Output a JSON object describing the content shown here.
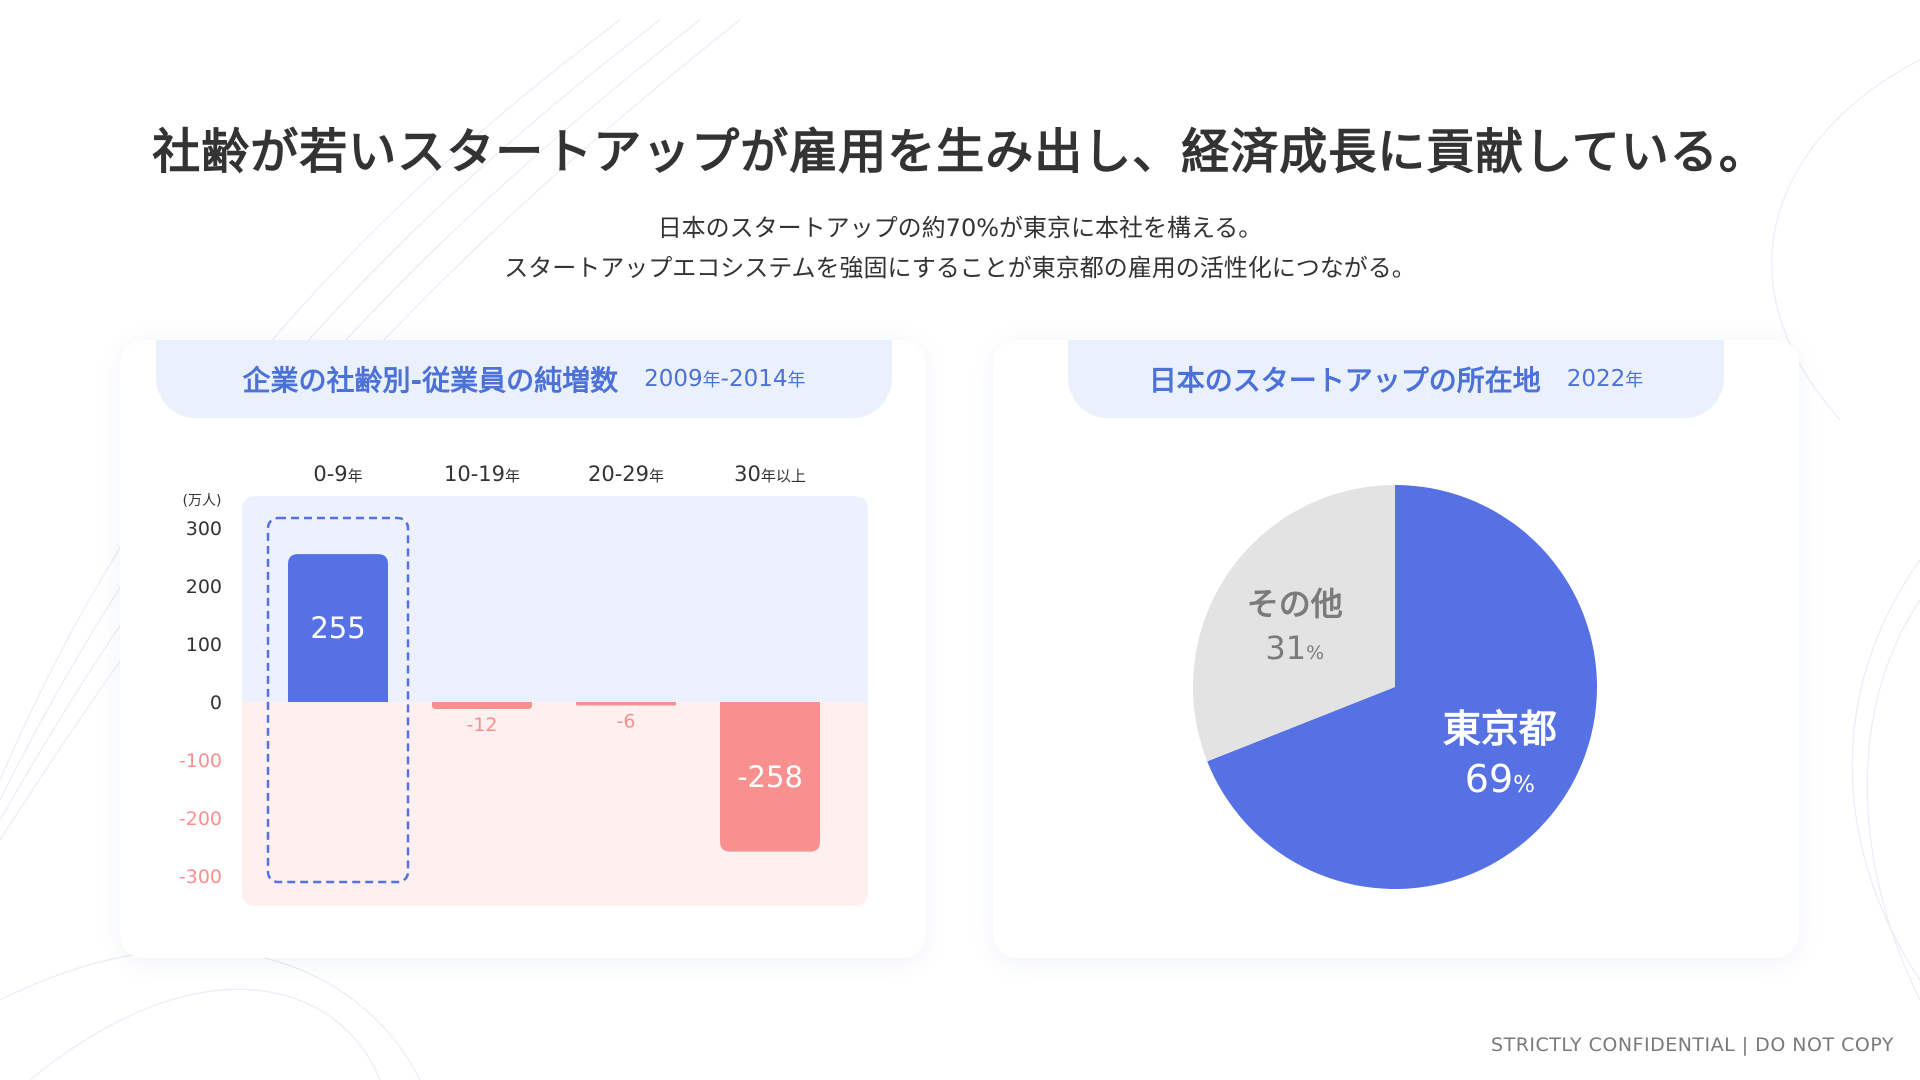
{
  "title": "社齢が若いスタートアップが雇用を生み出し、経済成長に貢献している。",
  "subtitle_lines": [
    "日本のスタートアップの約70%が東京に本社を構える。",
    "スタートアップエコシステムを強固にすることが東京都の雇用の活性化につながる。"
  ],
  "left_panel": {
    "heading": "企業の社齢別-従業員の純増数",
    "year_range": {
      "a": "2009",
      "nen": "年",
      "sep": "-",
      "b": "2014"
    }
  },
  "right_panel": {
    "heading": "日本のスタートアップの所在地",
    "year": {
      "a": "2022",
      "nen": "年"
    }
  },
  "footer": "STRICTLY CONFIDENTIAL | DO NOT COPY",
  "colors": {
    "positive": "#5671e3",
    "negative": "#f99090",
    "positive_bg": "#edf1fd",
    "negative_bg": "#fff0f0",
    "pie_tokyo": "#5671e3",
    "pie_other": "#e3e3e3",
    "highlight_border": "#5671e3"
  },
  "chart_data": [
    {
      "type": "bar",
      "title": "企業の社齢別-従業員の純増数",
      "unit_label": "(万人)",
      "categories": [
        {
          "main": "0-9",
          "suffix": "年"
        },
        {
          "main": "10-19",
          "suffix": "年"
        },
        {
          "main": "20-29",
          "suffix": "年"
        },
        {
          "main": "30",
          "suffix": "年以上"
        }
      ],
      "values": [
        255,
        -12,
        -6,
        -258
      ],
      "value_labels": [
        "255",
        "-12",
        "-6",
        "-258"
      ],
      "ylim": [
        -300,
        300
      ],
      "yticks": [
        300,
        200,
        100,
        0,
        -100,
        -200,
        -300
      ],
      "highlight_category_index": 0
    },
    {
      "type": "pie",
      "title": "日本のスタートアップの所在地",
      "slices": [
        {
          "label": "東京都",
          "value": 69,
          "value_text": "69",
          "unit": "%"
        },
        {
          "label": "その他",
          "value": 31,
          "value_text": "31",
          "unit": "%"
        }
      ]
    }
  ]
}
